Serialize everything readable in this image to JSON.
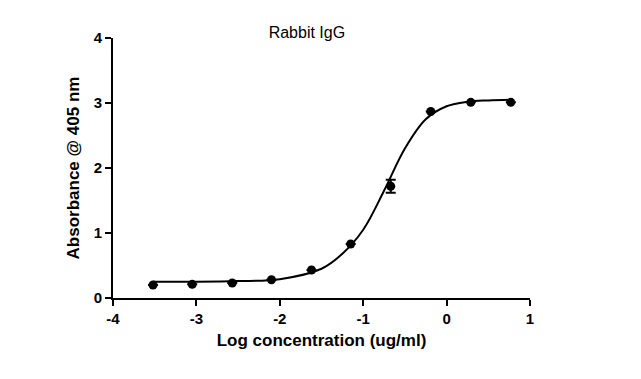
{
  "chart_data": {
    "type": "scatter",
    "title": "Rabbit IgG",
    "x_label": "Log concentration (ug/ml)",
    "y_label": "Absorbance @ 405 nm",
    "x": [
      -3.52,
      -3.05,
      -2.57,
      -2.1,
      -1.62,
      -1.15,
      -0.67,
      -0.19,
      0.29,
      0.77
    ],
    "values": [
      0.2,
      0.21,
      0.23,
      0.28,
      0.43,
      0.83,
      1.72,
      2.87,
      3.01,
      3.01
    ],
    "errors": [
      0,
      0,
      0,
      0,
      0,
      0,
      0.1,
      0,
      0,
      0
    ],
    "fit_x": [
      -3.52,
      -3.0,
      -2.5,
      -2.0,
      -1.5,
      -1.25,
      -1.0,
      -0.75,
      -0.5,
      -0.25,
      0.0,
      0.25,
      0.5,
      0.77
    ],
    "fit_values": [
      0.25,
      0.25,
      0.26,
      0.29,
      0.45,
      0.68,
      1.05,
      1.65,
      2.3,
      2.75,
      2.95,
      3.02,
      3.04,
      3.05
    ],
    "color": "#000000",
    "marker": "circle",
    "line_style": "solid",
    "xlim": [
      -4,
      1
    ],
    "xticks": [
      -4,
      -3,
      -2,
      -1,
      0,
      1
    ],
    "ylim": [
      0,
      4
    ],
    "yticks": [
      0,
      1,
      2,
      3,
      4
    ],
    "grid": false
  }
}
